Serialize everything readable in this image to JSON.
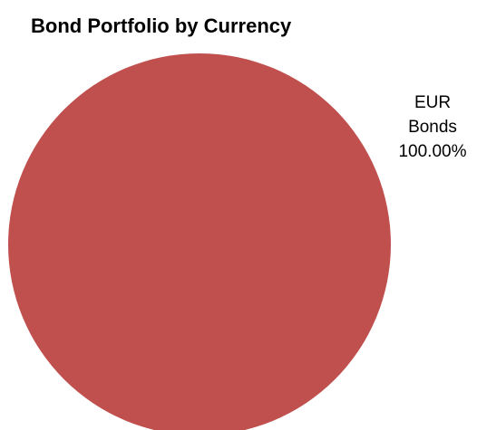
{
  "chart_data": {
    "type": "pie",
    "title": "Bond Portfolio by Currency",
    "slices": [
      {
        "label_line1": "EUR",
        "label_line2": "Bonds",
        "value": 100.0,
        "value_label": "100.00%",
        "color": "#c0504d"
      }
    ],
    "legend": "none"
  }
}
